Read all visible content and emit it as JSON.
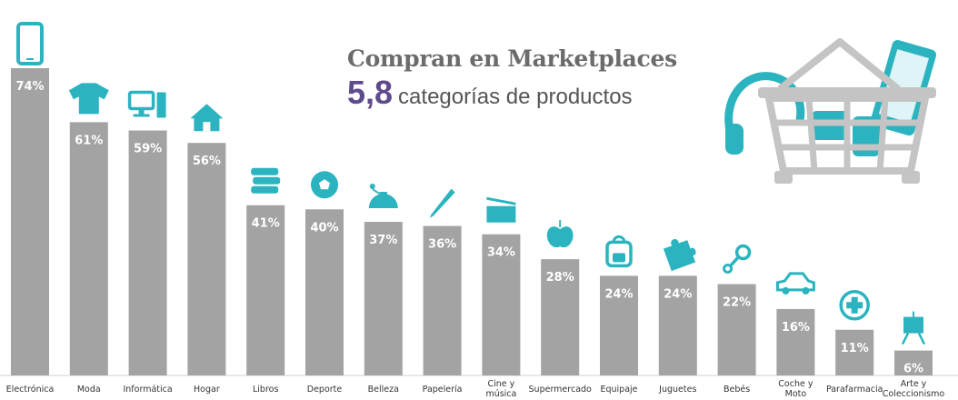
{
  "header": {
    "title": "Compran en Marketplaces",
    "highlight_number": "5,8",
    "subtitle": "categorías de productos"
  },
  "colors": {
    "bar": "#a3a3a3",
    "icon": "#2bb4bf",
    "highlight": "#5e4a8c",
    "title": "#6b6b6b",
    "basket": "#c4c4c4",
    "axis_label": "#333333"
  },
  "chart_data": {
    "type": "bar",
    "categories": [
      "Electrónica",
      "Moda",
      "Informática",
      "Hogar",
      "Libros",
      "Deporte",
      "Belleza",
      "Papelería",
      "Cine y música",
      "Supermercado",
      "Equipaje",
      "Juguetes",
      "Bebés",
      "Coche y Moto",
      "Parafarmacia",
      "Arte y Coleccionismo"
    ],
    "values": [
      74,
      61,
      59,
      56,
      41,
      40,
      37,
      36,
      34,
      28,
      24,
      24,
      22,
      16,
      11,
      6
    ],
    "data_labels": [
      "74%",
      "61%",
      "59%",
      "56%",
      "41%",
      "40%",
      "37%",
      "36%",
      "34%",
      "28%",
      "24%",
      "24%",
      "22%",
      "16%",
      "11%",
      "6%"
    ],
    "icons": [
      "smartphone-icon",
      "tshirt-icon",
      "computer-icon",
      "house-icon",
      "books-icon",
      "soccer-ball-icon",
      "perfume-icon",
      "pencil-icon",
      "clapperboard-icon",
      "apple-icon",
      "backpack-icon",
      "puzzle-icon",
      "rattle-icon",
      "car-icon",
      "medical-cross-icon",
      "easel-icon"
    ],
    "ylim": [
      0,
      74
    ],
    "grid": false,
    "legend": "none"
  },
  "decoration": {
    "basket_icon": "shopping-basket-icon"
  }
}
